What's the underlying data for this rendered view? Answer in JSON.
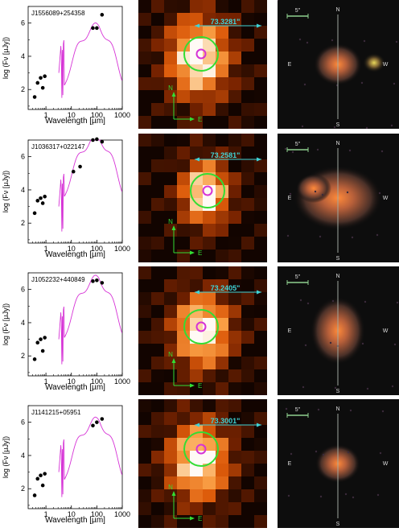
{
  "sed_axis": {
    "xlabel": "Wavelength [µm]",
    "ylabel": "log (Fν [µJy])",
    "xticks": [
      "1",
      "10",
      "100",
      "1000"
    ],
    "yticks": [
      "2",
      "4",
      "6"
    ]
  },
  "opt_labels": {
    "scale": "5\"",
    "north": "N",
    "south": "S",
    "east": "E",
    "west": "W"
  },
  "heat_arrow": {
    "north": "N",
    "east": "E"
  },
  "colors": {
    "model": "#d633d6",
    "circle": "#33dd33",
    "ring": "#d633d6",
    "offset": "#3fd4d8",
    "compass": "#33dd33",
    "scalebar": "#8fd08f",
    "cross": "#9fa89f"
  },
  "chart_data": [
    {
      "type": "scatter",
      "title": "J1556089+254358",
      "xscale": "log",
      "xlim": [
        0.2,
        1000
      ],
      "ylim": [
        0.8,
        7.0
      ],
      "xlabel": "Wavelength [µm]",
      "ylabel": "log (Fν [µJy])",
      "points": [
        [
          0.36,
          1.55
        ],
        [
          0.47,
          2.4
        ],
        [
          0.62,
          2.7
        ],
        [
          0.75,
          2.1
        ],
        [
          0.9,
          2.8
        ],
        [
          70,
          5.7
        ],
        [
          100,
          5.7
        ],
        [
          160,
          6.5
        ]
      ],
      "offset_label": "73.3281\""
    },
    {
      "type": "scatter",
      "title": "J1036317+022147",
      "xscale": "log",
      "xlim": [
        0.2,
        1000
      ],
      "ylim": [
        0.8,
        7.0
      ],
      "xlabel": "Wavelength [µm]",
      "ylabel": "log (Fν [µJy])",
      "points": [
        [
          0.36,
          2.6
        ],
        [
          0.47,
          3.35
        ],
        [
          0.62,
          3.5
        ],
        [
          0.75,
          3.2
        ],
        [
          0.9,
          3.6
        ],
        [
          12,
          5.1
        ],
        [
          22,
          5.4
        ],
        [
          70,
          7.0
        ],
        [
          100,
          7.05
        ],
        [
          160,
          6.9
        ]
      ],
      "offset_label": "73.2581\""
    },
    {
      "type": "scatter",
      "title": "J1052232+440849",
      "xscale": "log",
      "xlim": [
        0.2,
        1000
      ],
      "ylim": [
        0.8,
        7.0
      ],
      "xlabel": "Wavelength [µm]",
      "ylabel": "log (Fν [µJy])",
      "points": [
        [
          0.36,
          1.8
        ],
        [
          0.47,
          2.8
        ],
        [
          0.62,
          3.0
        ],
        [
          0.75,
          2.3
        ],
        [
          0.9,
          3.1
        ],
        [
          70,
          6.5
        ],
        [
          100,
          6.55
        ],
        [
          160,
          6.4
        ]
      ],
      "offset_label": "73.2405\""
    },
    {
      "type": "scatter",
      "title": "J1141215+05951",
      "xscale": "log",
      "xlim": [
        0.2,
        1000
      ],
      "ylim": [
        0.8,
        7.0
      ],
      "xlabel": "Wavelength [µm]",
      "ylabel": "log (Fν [µJy])",
      "points": [
        [
          0.36,
          1.6
        ],
        [
          0.47,
          2.6
        ],
        [
          0.62,
          2.8
        ],
        [
          0.75,
          2.2
        ],
        [
          0.9,
          2.9
        ],
        [
          70,
          5.8
        ],
        [
          100,
          6.0
        ],
        [
          160,
          6.2
        ]
      ],
      "offset_label": "73.3001\""
    }
  ]
}
